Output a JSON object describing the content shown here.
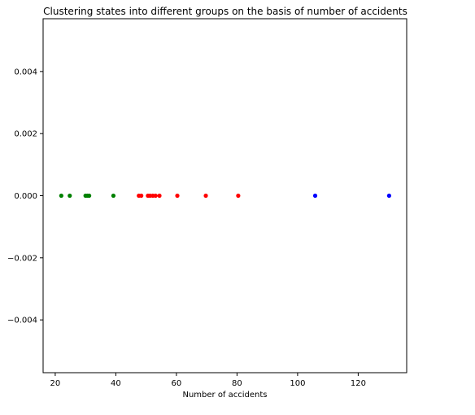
{
  "chart_data": {
    "type": "scatter",
    "title": "Clustering states into different groups on the basis of number of accidents",
    "xlabel": "Number of accidents",
    "ylabel": "",
    "xlim": [
      16.0,
      136.0
    ],
    "ylim": [
      -0.0057,
      0.0057
    ],
    "xticks": [
      20,
      40,
      60,
      80,
      100,
      120
    ],
    "xtick_labels": [
      "20",
      "40",
      "60",
      "80",
      "100",
      "120"
    ],
    "yticks": [
      -0.004,
      -0.002,
      0.0,
      0.002,
      0.004
    ],
    "ytick_labels": [
      "−0.004",
      "−0.002",
      "0.000",
      "0.002",
      "0.004"
    ],
    "grid": false,
    "series": [
      {
        "color": "#008000",
        "x": [
          22.0,
          24.8,
          30.0,
          30.6,
          31.2,
          39.2
        ],
        "y": [
          0,
          0,
          0,
          0,
          0,
          0
        ]
      },
      {
        "color": "#ff0000",
        "x": [
          47.6,
          48.4,
          50.6,
          51.3,
          52.2,
          53.1,
          54.4,
          60.3,
          69.7,
          80.4
        ],
        "y": [
          0,
          0,
          0,
          0,
          0,
          0,
          0,
          0,
          0,
          0
        ]
      },
      {
        "color": "#0000ff",
        "x": [
          105.8,
          130.2
        ],
        "y": [
          0,
          0
        ]
      }
    ]
  }
}
